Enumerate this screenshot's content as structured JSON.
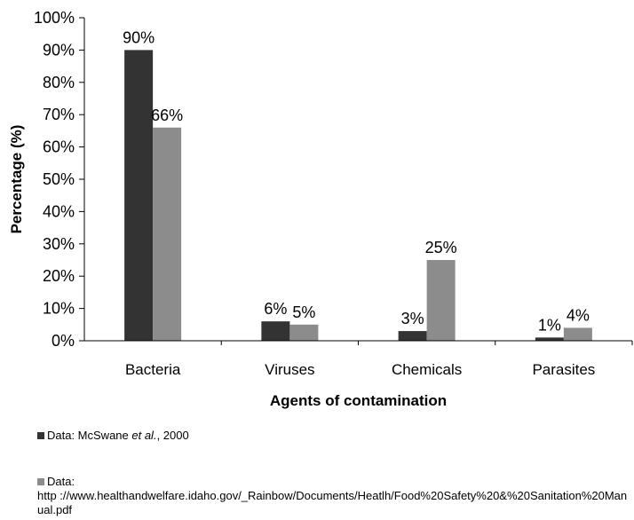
{
  "chart_data": {
    "type": "bar",
    "xlabel": "Agents of contamination",
    "ylabel": "Percentage (%)",
    "ylim": [
      0,
      100
    ],
    "yticks": [
      "0%",
      "10%",
      "20%",
      "30%",
      "40%",
      "50%",
      "60%",
      "70%",
      "80%",
      "90%",
      "100%"
    ],
    "categories": [
      "Bacteria",
      "Viruses",
      "Chemicals",
      "Parasites"
    ],
    "series": [
      {
        "values": [
          90,
          6,
          3,
          1
        ],
        "labels": [
          "90%",
          "6%",
          "3%",
          "1%"
        ],
        "color": "#333333",
        "legend_text": "Data: McSwane ",
        "legend_em": "et al.",
        "legend_tail": ", 2000"
      },
      {
        "values": [
          66,
          5,
          25,
          4
        ],
        "labels": [
          "66%",
          "5%",
          "25%",
          "4%"
        ],
        "color": "#8c8c8c",
        "legend_text": "Data:",
        "legend_url": "http ://www.healthandwelfare.idaho.gov/_Rainbow/Documents/Heatlh/Food%20Safety%20&%20Sanitation%20Manual.pdf"
      }
    ],
    "grid": false,
    "legend_position": "bottom-left"
  }
}
